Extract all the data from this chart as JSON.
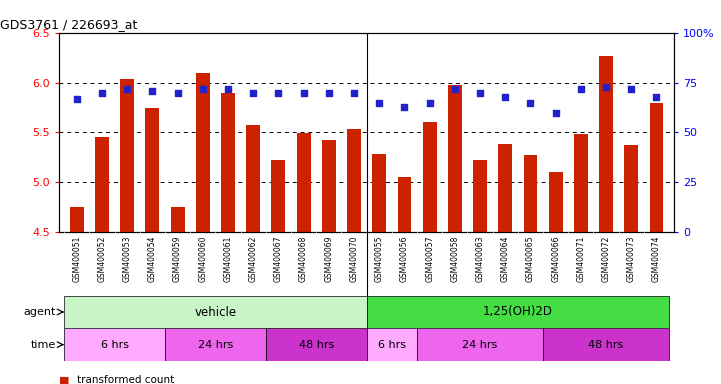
{
  "title": "GDS3761 / 226693_at",
  "samples": [
    "GSM400051",
    "GSM400052",
    "GSM400053",
    "GSM400054",
    "GSM400059",
    "GSM400060",
    "GSM400061",
    "GSM400062",
    "GSM400067",
    "GSM400068",
    "GSM400069",
    "GSM400070",
    "GSM400055",
    "GSM400056",
    "GSM400057",
    "GSM400058",
    "GSM400063",
    "GSM400064",
    "GSM400065",
    "GSM400066",
    "GSM400071",
    "GSM400072",
    "GSM400073",
    "GSM400074"
  ],
  "bar_values": [
    4.75,
    5.45,
    6.04,
    5.75,
    4.75,
    6.1,
    5.9,
    5.57,
    5.22,
    5.49,
    5.42,
    5.53,
    5.28,
    5.05,
    5.6,
    5.98,
    5.22,
    5.38,
    5.27,
    5.1,
    5.48,
    6.27,
    5.37,
    5.8
  ],
  "blue_values": [
    67,
    70,
    72,
    71,
    70,
    72,
    72,
    70,
    70,
    70,
    70,
    70,
    65,
    63,
    65,
    72,
    70,
    68,
    65,
    60,
    72,
    73,
    72,
    68
  ],
  "ylim_left": [
    4.5,
    6.5
  ],
  "ylim_right": [
    0,
    100
  ],
  "bar_color": "#cc2200",
  "blue_color": "#2222cc",
  "right_yticks": [
    0,
    25,
    50,
    75,
    100
  ],
  "right_yticklabels": [
    "0",
    "25",
    "50",
    "75",
    "100%"
  ],
  "left_yticks": [
    4.5,
    5.0,
    5.5,
    6.0,
    6.5
  ],
  "hlines": [
    5.0,
    5.5,
    6.0
  ],
  "num_samples": 24,
  "vehicle_count": 12,
  "agent_vehicle_color": "#c8f5c8",
  "agent_d_color": "#44dd44",
  "time_colors": {
    "6 hrs": "#ffaaff",
    "24 hrs": "#ee66ee",
    "48 hrs": "#cc33cc"
  },
  "time_data": [
    [
      0,
      4,
      "6 hrs"
    ],
    [
      4,
      8,
      "24 hrs"
    ],
    [
      8,
      12,
      "48 hrs"
    ],
    [
      12,
      14,
      "6 hrs"
    ],
    [
      14,
      19,
      "24 hrs"
    ],
    [
      19,
      24,
      "48 hrs"
    ]
  ],
  "xtick_bg_color": "#d8d8d8"
}
